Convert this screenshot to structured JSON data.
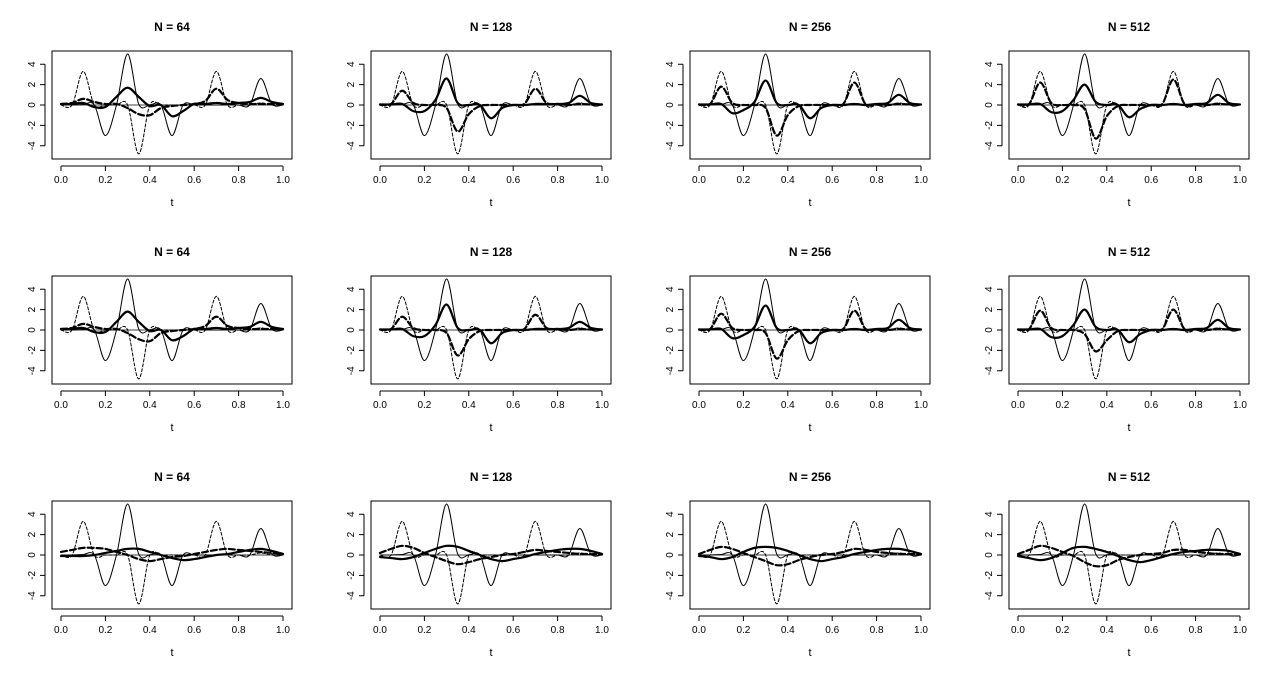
{
  "chart_data": {
    "type": "line",
    "layout": "3 rows x 4 columns of small-multiple line plots",
    "x_label": "t",
    "xlim": [
      0,
      1
    ],
    "ylim": [
      -5.3,
      5.3
    ],
    "x_ticks": [
      "0.0",
      "0.2",
      "0.4",
      "0.6",
      "0.8",
      "1.0"
    ],
    "y_ticks": [
      "4",
      "2",
      "0",
      "-2",
      "-4"
    ],
    "x_tick_values": [
      0,
      0.2,
      0.4,
      0.6,
      0.8,
      1.0
    ],
    "y_tick_values": [
      4,
      2,
      0,
      -2,
      -4
    ],
    "x_grid": [
      0,
      0.05,
      0.1,
      0.15,
      0.2,
      0.25,
      0.3,
      0.35,
      0.4,
      0.45,
      0.5,
      0.55,
      0.6,
      0.65,
      0.7,
      0.75,
      0.8,
      0.85,
      0.9,
      0.95,
      1.0
    ],
    "series_styles": [
      {
        "key": "true_a",
        "line": "thin solid"
      },
      {
        "key": "true_b",
        "line": "thin dashed"
      },
      {
        "key": "est_a",
        "line": "thick solid"
      },
      {
        "key": "est_b",
        "line": "thick dashed"
      }
    ],
    "true_a": [
      0,
      0,
      0.05,
      0,
      -3.0,
      0,
      5.0,
      0.1,
      0,
      0,
      -3.0,
      0,
      0,
      0,
      0,
      0,
      0,
      0,
      2.6,
      0.1,
      0
    ],
    "true_b": [
      0,
      0,
      3.3,
      0,
      0,
      0,
      0,
      -4.8,
      0,
      0,
      0,
      0,
      0,
      0,
      3.3,
      0,
      0,
      0,
      0.2,
      0,
      0
    ],
    "panels": [
      {
        "title": "N = 64",
        "est_a": [
          0.1,
          0.1,
          0.2,
          -0.2,
          -0.2,
          0.8,
          1.7,
          0.8,
          -0.1,
          0,
          -1.1,
          -0.6,
          0.1,
          0.1,
          0.2,
          0.1,
          0.2,
          0.3,
          0.7,
          0.3,
          0.1
        ],
        "est_b": [
          0.1,
          0.2,
          0.6,
          0.3,
          0.1,
          0.1,
          -0.3,
          -0.9,
          -1.0,
          -0.3,
          -0.1,
          0,
          0.1,
          0.4,
          1.6,
          0.5,
          0.2,
          0.1,
          0.1,
          0.1,
          0.1
        ]
      },
      {
        "title": "N = 128",
        "est_a": [
          0.05,
          0.05,
          0.1,
          -0.6,
          -0.6,
          0.5,
          2.6,
          0.2,
          0,
          0,
          -1.3,
          -0.3,
          0,
          0,
          0.1,
          0.1,
          0.1,
          0.2,
          0.9,
          0.2,
          0.05
        ],
        "est_b": [
          0.05,
          0.1,
          1.4,
          0.2,
          0,
          0,
          -0.3,
          -2.6,
          -0.9,
          -0.1,
          0,
          0,
          0,
          0.1,
          1.6,
          0.2,
          0.1,
          0,
          0.1,
          0.05,
          0.05
        ]
      },
      {
        "title": "N = 256",
        "est_a": [
          0.05,
          0.05,
          0.1,
          -0.8,
          -0.5,
          0.3,
          2.4,
          0.2,
          0,
          0,
          -1.3,
          -0.3,
          0,
          0,
          0.1,
          0,
          0.1,
          0.2,
          1.0,
          0.2,
          0.05
        ],
        "est_b": [
          0.05,
          0.1,
          1.8,
          0.2,
          0,
          0,
          -0.3,
          -3.0,
          -1.0,
          -0.1,
          0,
          0,
          0,
          0.1,
          2.2,
          0.1,
          0.05,
          0,
          0.1,
          0.05,
          0.05
        ]
      },
      {
        "title": "N = 512",
        "est_a": [
          0.05,
          0.05,
          0.1,
          -0.7,
          -0.6,
          0.5,
          2.0,
          0.3,
          0,
          0,
          -1.2,
          -0.4,
          0,
          0,
          0.1,
          0,
          0.1,
          0.2,
          1.0,
          0.2,
          0.05
        ],
        "est_b": [
          0.05,
          0.1,
          2.2,
          0.2,
          0,
          0,
          -0.4,
          -3.3,
          -1.1,
          -0.1,
          0,
          0,
          0,
          0.1,
          2.5,
          0.1,
          0.05,
          0,
          0.1,
          0.05,
          0.05
        ]
      },
      {
        "title": "N = 64",
        "est_a": [
          0.1,
          0.1,
          0.2,
          -0.2,
          -0.2,
          0.8,
          1.8,
          0.8,
          -0.1,
          0,
          -1.0,
          -0.6,
          0.1,
          0.1,
          0.2,
          0.1,
          0.2,
          0.3,
          0.8,
          0.3,
          0.1
        ],
        "est_b": [
          0.1,
          0.2,
          0.6,
          0.3,
          0.1,
          0.1,
          -0.3,
          -0.9,
          -1.1,
          -0.3,
          -0.1,
          0,
          0.1,
          0.4,
          1.3,
          0.4,
          0.2,
          0.1,
          0.1,
          0.1,
          0.1
        ]
      },
      {
        "title": "N = 128",
        "est_a": [
          0.05,
          0.05,
          0.1,
          -0.6,
          -0.6,
          0.5,
          2.5,
          0.2,
          0,
          0,
          -1.3,
          -0.3,
          0,
          0,
          0.1,
          0.1,
          0.1,
          0.2,
          0.8,
          0.2,
          0.05
        ],
        "est_b": [
          0.05,
          0.1,
          1.3,
          0.2,
          0,
          0,
          -0.3,
          -2.5,
          -0.9,
          -0.1,
          0,
          0,
          0,
          0.1,
          1.5,
          0.2,
          0.1,
          0,
          0.1,
          0.05,
          0.05
        ]
      },
      {
        "title": "N = 256",
        "est_a": [
          0.05,
          0.05,
          0.1,
          -0.8,
          -0.5,
          0.3,
          2.4,
          0.2,
          0,
          0,
          -1.3,
          -0.3,
          0,
          0,
          0.1,
          0,
          0.1,
          0.2,
          1.0,
          0.2,
          0.05
        ],
        "est_b": [
          0.05,
          0.1,
          1.6,
          0.2,
          0,
          0,
          -0.3,
          -2.8,
          -1.0,
          -0.1,
          0,
          0,
          0,
          0.1,
          1.9,
          0.1,
          0.05,
          0,
          0.1,
          0.05,
          0.05
        ]
      },
      {
        "title": "N = 512",
        "est_a": [
          0.05,
          0.05,
          0.1,
          -0.7,
          -0.6,
          0.5,
          2.0,
          0.3,
          0,
          0,
          -1.2,
          -0.4,
          0,
          0,
          0.1,
          0,
          0.1,
          0.2,
          1.0,
          0.2,
          0.05
        ],
        "est_b": [
          0.05,
          0.1,
          1.9,
          0.2,
          0,
          0,
          -0.4,
          -2.1,
          -1.0,
          -0.1,
          0,
          0,
          0,
          0.1,
          2.0,
          0.1,
          0.05,
          0,
          0.1,
          0.05,
          0.05
        ]
      },
      {
        "title": "N = 64",
        "est_a": [
          -0.1,
          -0.1,
          -0.1,
          0,
          0.2,
          0.4,
          0.6,
          0.6,
          0.3,
          0,
          -0.3,
          -0.5,
          -0.4,
          -0.2,
          0,
          0.1,
          0.3,
          0.5,
          0.6,
          0.4,
          0.1
        ],
        "est_b": [
          0.3,
          0.5,
          0.7,
          0.7,
          0.6,
          0.3,
          0,
          -0.4,
          -0.6,
          -0.4,
          -0.2,
          -0.1,
          0.1,
          0.3,
          0.5,
          0.6,
          0.5,
          0.4,
          0.3,
          0.2,
          0.1
        ]
      },
      {
        "title": "N = 128",
        "est_a": [
          -0.2,
          -0.3,
          -0.4,
          -0.2,
          0.2,
          0.6,
          0.9,
          0.8,
          0.4,
          0,
          -0.4,
          -0.6,
          -0.4,
          -0.2,
          0.1,
          0.3,
          0.5,
          0.6,
          0.6,
          0.4,
          0.1
        ],
        "est_b": [
          0.2,
          0.6,
          0.9,
          0.7,
          0.2,
          -0.2,
          -0.6,
          -0.9,
          -0.7,
          -0.4,
          -0.2,
          0,
          0.1,
          0.3,
          0.5,
          0.4,
          0.3,
          0.2,
          0.1,
          0.1,
          0.05
        ]
      },
      {
        "title": "N = 256",
        "est_a": [
          -0.1,
          -0.2,
          -0.4,
          -0.2,
          0.3,
          0.7,
          0.8,
          0.7,
          0.4,
          0,
          -0.4,
          -0.6,
          -0.4,
          -0.2,
          0.1,
          0.3,
          0.5,
          0.6,
          0.6,
          0.4,
          0.1
        ],
        "est_b": [
          0.1,
          0.5,
          0.8,
          0.6,
          0.2,
          -0.2,
          -0.6,
          -1.0,
          -0.9,
          -0.5,
          -0.2,
          0,
          0.1,
          0.3,
          0.6,
          0.5,
          0.3,
          0.2,
          0.1,
          0.1,
          0.05
        ]
      },
      {
        "title": "N = 512",
        "est_a": [
          -0.1,
          -0.3,
          -0.5,
          -0.3,
          0.2,
          0.7,
          0.8,
          0.6,
          0.3,
          -0.1,
          -0.5,
          -0.7,
          -0.5,
          -0.2,
          0.1,
          0.3,
          0.4,
          0.5,
          0.5,
          0.4,
          0.1
        ],
        "est_b": [
          0.1,
          0.5,
          0.9,
          0.7,
          0.3,
          -0.1,
          -0.7,
          -1.1,
          -1.0,
          -0.5,
          -0.2,
          0,
          0.1,
          0.2,
          0.5,
          0.5,
          0.3,
          0.2,
          0.1,
          0.1,
          0.05
        ]
      }
    ]
  }
}
